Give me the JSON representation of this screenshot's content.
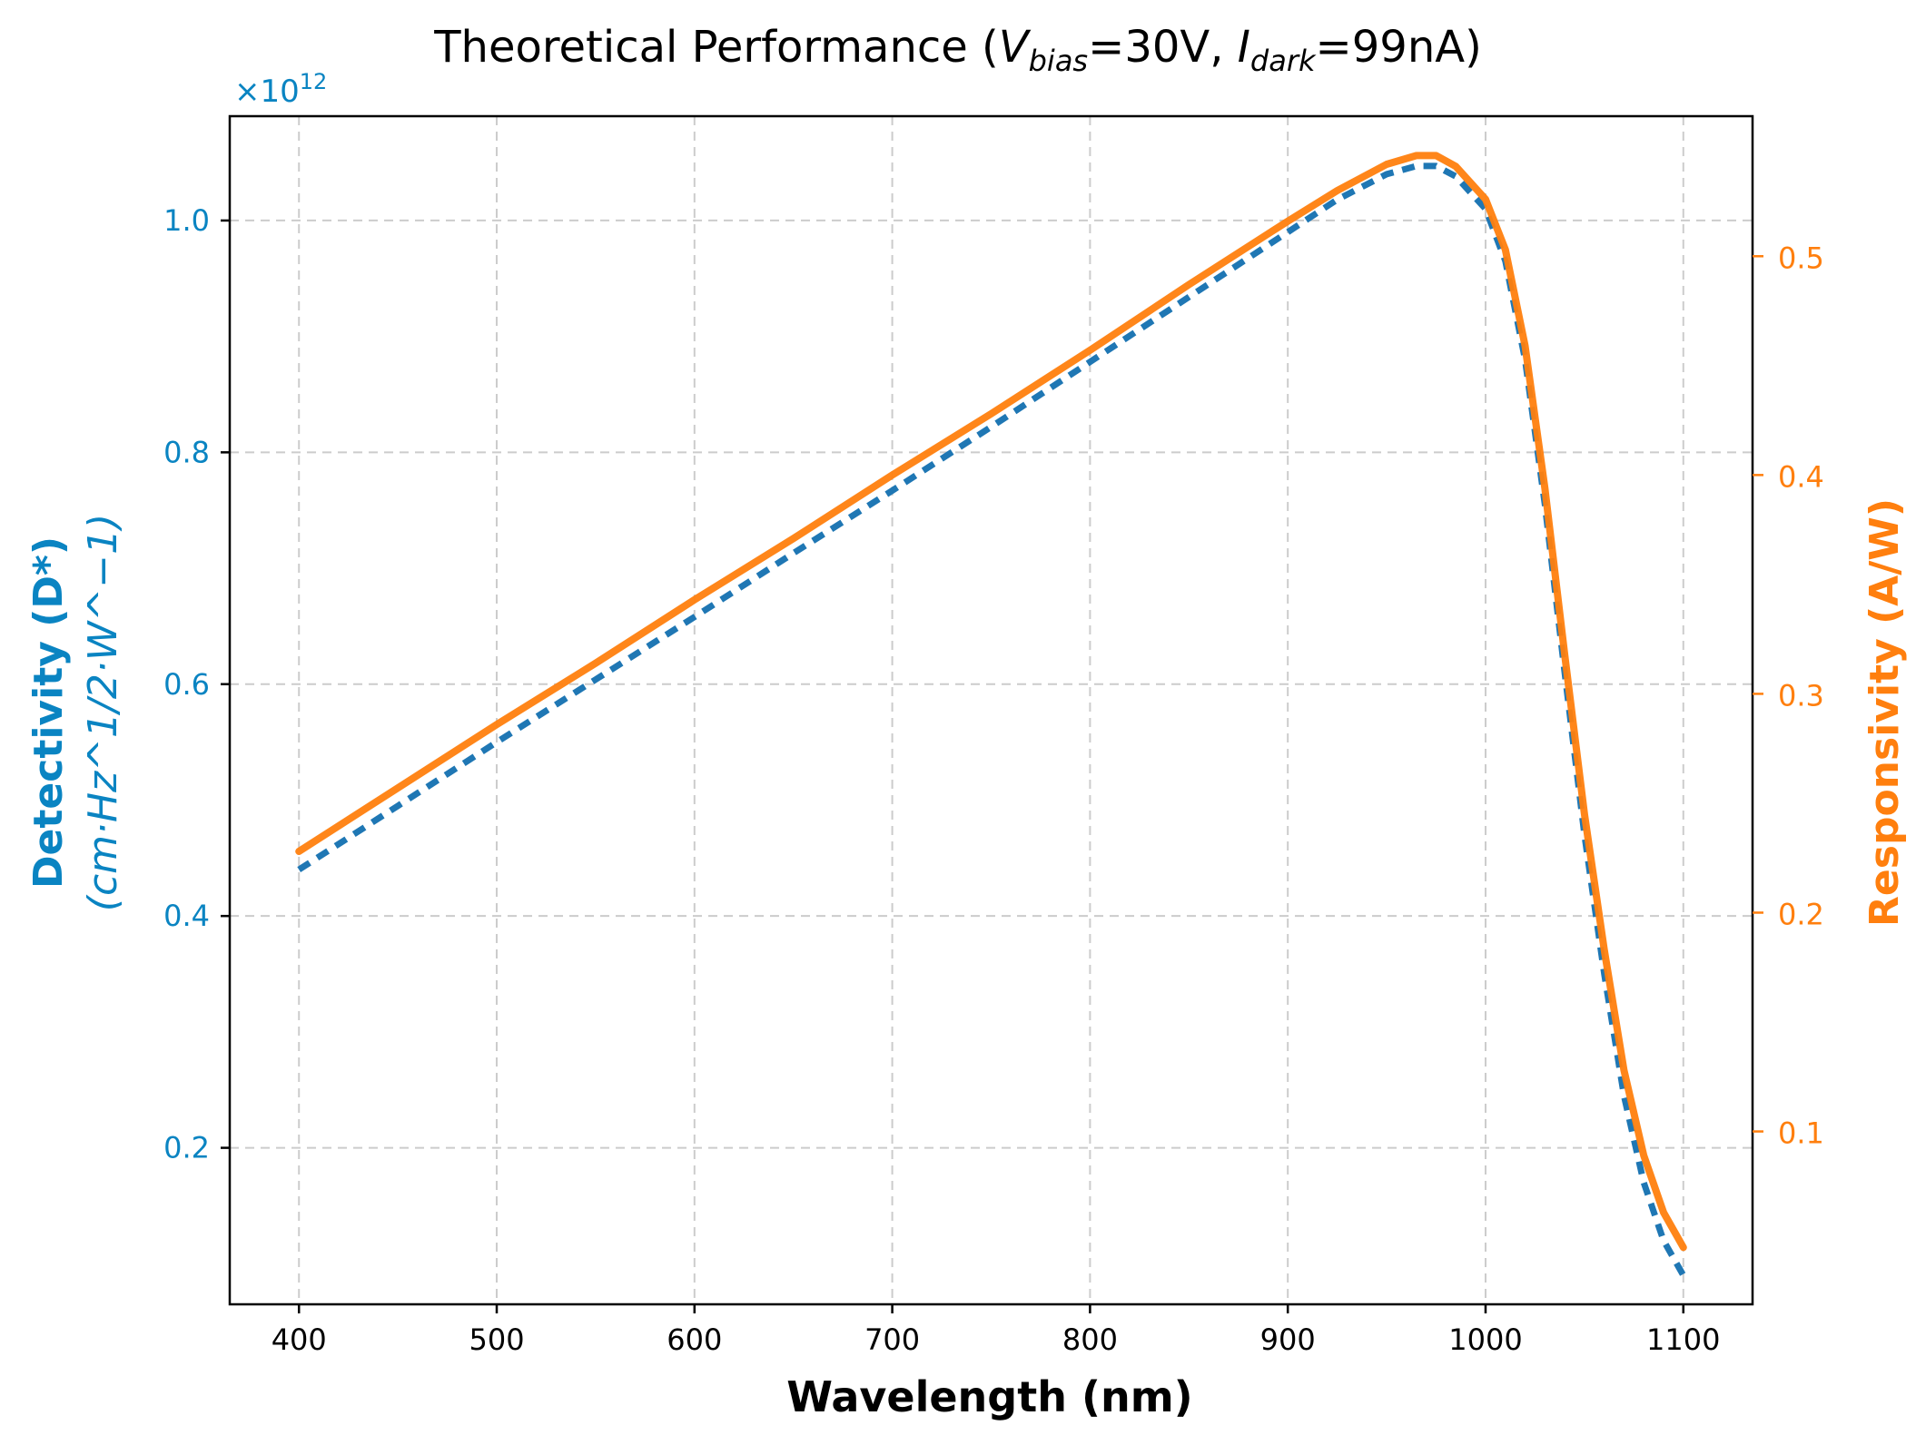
{
  "chart_data": {
    "type": "line",
    "title": {
      "prefix": "Theoretical Performance (",
      "v_sym": "V",
      "v_sub": "bias",
      "v_val": "=30V, ",
      "i_sym": "I",
      "i_sub": "dark",
      "i_val": "=99nA)"
    },
    "xlabel": "Wavelength (nm)",
    "xlim": [
      365,
      1135
    ],
    "xticks": [
      400,
      500,
      600,
      700,
      800,
      900,
      1000,
      1100
    ],
    "left_axis": {
      "label_main": "Detectivity",
      "label_symbol": "(D*)",
      "label_units": "(cm·Hz^1/2·W^−1)",
      "offset_text": "×10^12",
      "ylim": [
        0.065,
        1.09
      ],
      "ticks": [
        0.2,
        0.4,
        0.6,
        0.8,
        1.0
      ],
      "tick_labels": [
        "0.2",
        "0.4",
        "0.6",
        "0.8",
        "1.0"
      ],
      "color": "#1f77b4",
      "label_color": "#0a84c2"
    },
    "right_axis": {
      "label": "Responsivity (A/W)",
      "ylim": [
        0.021,
        0.564
      ],
      "ticks": [
        0.1,
        0.2,
        0.3,
        0.4,
        0.5
      ],
      "tick_labels": [
        "0.1",
        "0.2",
        "0.3",
        "0.4",
        "0.5"
      ],
      "color": "#ff7f0e"
    },
    "grid": true,
    "series": [
      {
        "axis": "left",
        "style": "dashed",
        "color": "#1f77b4",
        "x": [
          400,
          450,
          500,
          550,
          600,
          650,
          700,
          750,
          800,
          850,
          900,
          925,
          950,
          965,
          975,
          985,
          1000,
          1010,
          1020,
          1030,
          1040,
          1050,
          1060,
          1070,
          1080,
          1090,
          1100
        ],
        "y": [
          0.44,
          0.495,
          0.55,
          0.604,
          0.658,
          0.713,
          0.767,
          0.822,
          0.878,
          0.934,
          0.99,
          1.018,
          1.04,
          1.047,
          1.047,
          1.038,
          1.01,
          0.965,
          0.88,
          0.755,
          0.61,
          0.47,
          0.35,
          0.245,
          0.17,
          0.12,
          0.09
        ]
      },
      {
        "axis": "right",
        "style": "solid",
        "color": "#ff7f0e",
        "x": [
          400,
          450,
          500,
          550,
          600,
          650,
          700,
          750,
          800,
          850,
          900,
          925,
          950,
          965,
          975,
          985,
          1000,
          1010,
          1020,
          1030,
          1040,
          1050,
          1060,
          1070,
          1080,
          1090,
          1100
        ],
        "y": [
          0.228,
          0.257,
          0.286,
          0.314,
          0.343,
          0.371,
          0.4,
          0.428,
          0.457,
          0.487,
          0.516,
          0.53,
          0.542,
          0.546,
          0.546,
          0.541,
          0.526,
          0.503,
          0.459,
          0.394,
          0.318,
          0.245,
          0.183,
          0.128,
          0.089,
          0.063,
          0.047
        ]
      }
    ]
  }
}
